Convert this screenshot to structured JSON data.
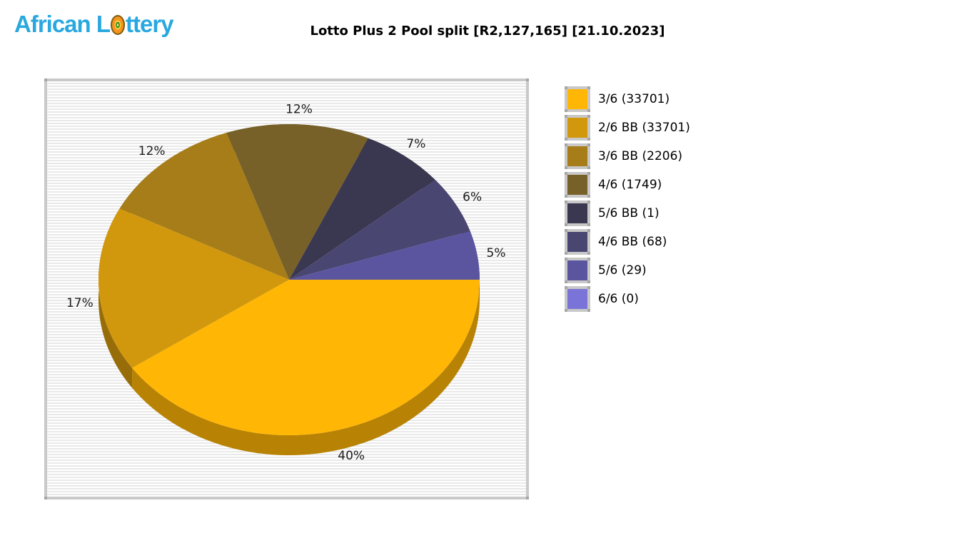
{
  "logo": {
    "text_before": "African L",
    "text_after": "ttery",
    "full_name": "African Lottery",
    "color": "#29A8E0",
    "ball_icon_colors": [
      "#f7941d",
      "#ffd23f",
      "#2f8f2f",
      "#ffe24a"
    ]
  },
  "header": {
    "title": "Lotto Plus 2 Pool split [R2,127,165] [21.10.2023]"
  },
  "chart_data": {
    "type": "pie",
    "style": "3d",
    "title": "Lotto Plus 2 Pool split [R2,127,165] [21.10.2023]",
    "legend_position": "right",
    "background": "striped-gray",
    "plot_border_color": "#C9C9C9",
    "slices": [
      {
        "label": "3/6",
        "count": 33701,
        "percent": 40,
        "pct_label": "40%",
        "legend": "3/6 (33701)",
        "color": "#FFB605"
      },
      {
        "label": "2/6 BB",
        "count": 33701,
        "percent": 17,
        "pct_label": "17%",
        "legend": "2/6 BB (33701)",
        "color": "#D2980D"
      },
      {
        "label": "3/6 BB",
        "count": 2206,
        "percent": 12,
        "pct_label": "12%",
        "legend": "3/6 BB (2206)",
        "color": "#A67D18"
      },
      {
        "label": "4/6",
        "count": 1749,
        "percent": 12,
        "pct_label": "12%",
        "legend": "4/6 (1749)",
        "color": "#776128"
      },
      {
        "label": "5/6 BB",
        "count": 1,
        "percent": 7,
        "pct_label": "7%",
        "legend": "5/6 BB (1)",
        "color": "#3A3750"
      },
      {
        "label": "4/6 BB",
        "count": 68,
        "percent": 6,
        "pct_label": "6%",
        "legend": "4/6 BB (68)",
        "color": "#4A4672"
      },
      {
        "label": "5/6",
        "count": 29,
        "percent": 5,
        "pct_label": "5%",
        "legend": "5/6 (29)",
        "color": "#5B55A0"
      },
      {
        "label": "6/6",
        "count": 0,
        "percent": 0,
        "pct_label": "",
        "legend": "6/6 (0)",
        "color": "#7B74D8"
      }
    ]
  }
}
